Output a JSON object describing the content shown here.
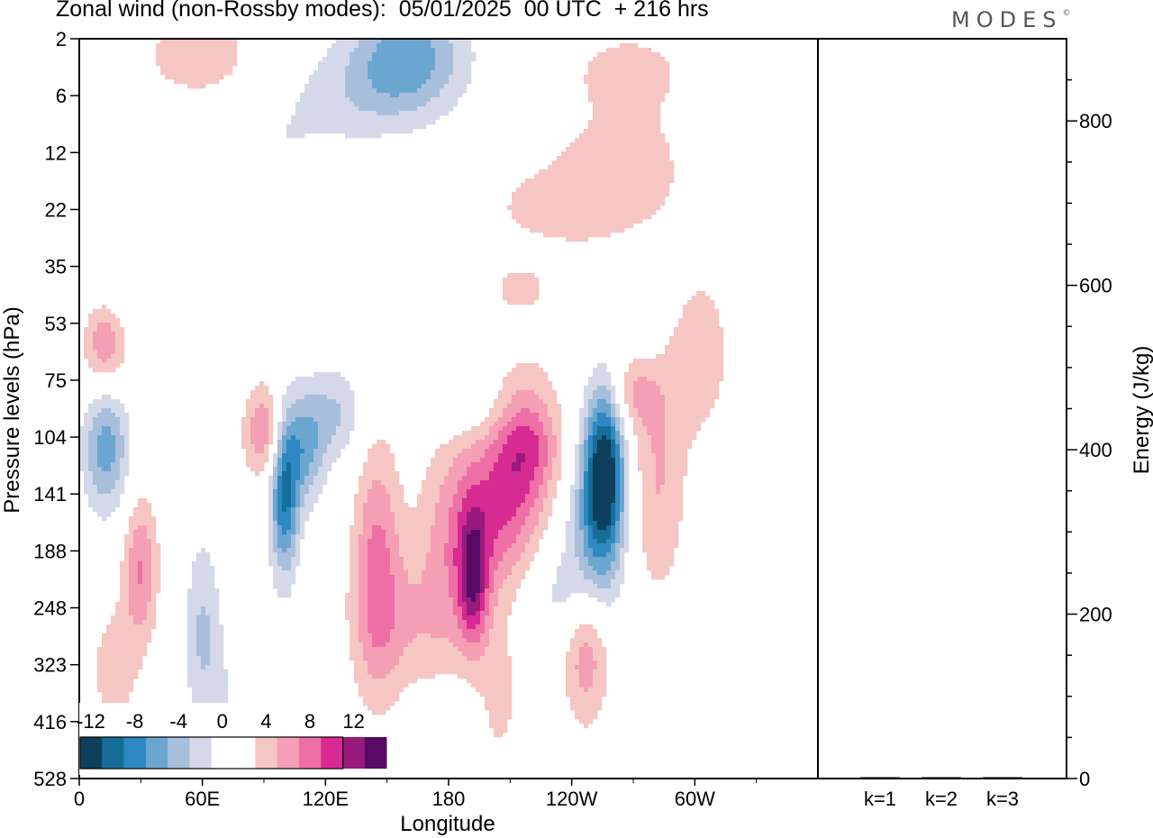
{
  "header": {
    "title": "Zonal wind (non-Rossby modes):  05/01/2025  00 UTC  + 216 hrs",
    "logo": "MODES",
    "logo_mark": "©"
  },
  "colors": {
    "neg": [
      "#0e3f5c",
      "#166d9a",
      "#2e88c1",
      "#6aa6cf",
      "#a7bfdb",
      "#d5d8e8"
    ],
    "zero": "#ffffff",
    "pos": [
      "#f6c6c3",
      "#f49fb4",
      "#ee6fa6",
      "#d72a92",
      "#981a7c",
      "#560a64"
    ]
  },
  "chart_data": [
    {
      "type": "heatmap",
      "title": "Zonal wind (non-Rossby modes):  05/01/2025  00 UTC  + 216 hrs",
      "xlabel": "Longitude",
      "ylabel": "Pressure levels (hPa)",
      "x_ticks": [
        "0",
        "60E",
        "120E",
        "180",
        "120W",
        "60W"
      ],
      "y_ticks": [
        "2",
        "6",
        "12",
        "22",
        "35",
        "53",
        "75",
        "104",
        "141",
        "188",
        "248",
        "323",
        "416",
        "528"
      ],
      "colorbar_labels": [
        "-12",
        "-8",
        "-4",
        "0",
        "4",
        "8",
        "12"
      ],
      "grid": false,
      "blobs": [
        {
          "lon": 13,
          "lev": 7.2,
          "sx": 8,
          "sy": 0.8,
          "v": -7
        },
        {
          "lon": 18,
          "lev": 4.6,
          "sx": 12,
          "sy": 0.7,
          "v": -2.5
        },
        {
          "lon": 100,
          "lev": 8.0,
          "sx": 5,
          "sy": 1.0,
          "v": -10
        },
        {
          "lon": 110,
          "lev": 7.2,
          "sx": 7,
          "sy": 0.7,
          "v": -6
        },
        {
          "lon": 125,
          "lev": 6.6,
          "sx": 10,
          "sy": 0.6,
          "v": -4
        },
        {
          "lon": 60,
          "lev": 10.4,
          "sx": 6,
          "sy": 1.2,
          "v": -4
        },
        {
          "lon": 80,
          "lev": 11.8,
          "sx": 14,
          "sy": 1.3,
          "v": -2
        },
        {
          "lon": 160,
          "lev": 0.3,
          "sx": 20,
          "sy": 0.7,
          "v": -7
        },
        {
          "lon": 135,
          "lev": 1.0,
          "sx": 25,
          "sy": 0.6,
          "v": -2.5
        },
        {
          "lon": 256,
          "lev": 7.6,
          "sx": 7,
          "sy": 1.0,
          "v": -14
        },
        {
          "lon": 250,
          "lev": 8.8,
          "sx": 10,
          "sy": 1.0,
          "v": -5
        },
        {
          "lon": 240,
          "lev": 9.8,
          "sx": 14,
          "sy": 0.6,
          "v": -3
        },
        {
          "lon": 180,
          "lev": 12.6,
          "sx": 15,
          "sy": 0.8,
          "v": -2.5
        },
        {
          "lon": 90,
          "lev": 2.0,
          "sx": 25,
          "sy": 0.7,
          "v": -1.8
        },
        {
          "lon": 195,
          "lev": 6.5,
          "sx": 25,
          "sy": 0.4,
          "v": -2
        },
        {
          "lon": 280,
          "lev": 4.8,
          "sx": 12,
          "sy": 0.8,
          "v": -2
        },
        {
          "lon": 13,
          "lev": 5.3,
          "sx": 8,
          "sy": 0.6,
          "v": 7
        },
        {
          "lon": 30,
          "lev": 9.3,
          "sx": 6,
          "sy": 0.9,
          "v": 6
        },
        {
          "lon": 17,
          "lev": 11.1,
          "sx": 9,
          "sy": 0.9,
          "v": 3
        },
        {
          "lon": 90,
          "lev": 6.9,
          "sx": 7,
          "sy": 0.6,
          "v": 6
        },
        {
          "lon": 58,
          "lev": 0.3,
          "sx": 18,
          "sy": 0.5,
          "v": 4
        },
        {
          "lon": 145,
          "lev": 9.2,
          "sx": 8,
          "sy": 1.6,
          "v": 6
        },
        {
          "lon": 188,
          "lev": 8.5,
          "sx": 14,
          "sy": 1.2,
          "v": 6
        },
        {
          "lon": 192,
          "lev": 9.5,
          "sx": 5,
          "sy": 0.8,
          "v": 8
        },
        {
          "lon": 218,
          "lev": 7.0,
          "sx": 12,
          "sy": 0.8,
          "v": 8
        },
        {
          "lon": 210,
          "lev": 8.3,
          "sx": 12,
          "sy": 0.9,
          "v": 5
        },
        {
          "lon": 165,
          "lev": 10.3,
          "sx": 22,
          "sy": 1.0,
          "v": 3.5
        },
        {
          "lon": 247,
          "lev": 10.6,
          "sx": 8,
          "sy": 1.0,
          "v": 6
        },
        {
          "lon": 270,
          "lev": 6.2,
          "sx": 8,
          "sy": 0.5,
          "v": 4
        },
        {
          "lon": 282,
          "lev": 7.8,
          "sx": 10,
          "sy": 1.5,
          "v": 4
        },
        {
          "lon": 300,
          "lev": 5.5,
          "sx": 12,
          "sy": 1.0,
          "v": 4
        },
        {
          "lon": 240,
          "lev": 3.0,
          "sx": 30,
          "sy": 0.5,
          "v": 3
        },
        {
          "lon": 265,
          "lev": 2.0,
          "sx": 30,
          "sy": 0.8,
          "v": 2.5
        },
        {
          "lon": 190,
          "lev": 13.3,
          "sx": 10,
          "sy": 0.8,
          "v": 3
        },
        {
          "lon": 205,
          "lev": 11.7,
          "sx": 8,
          "sy": 0.9,
          "v": 2.5
        },
        {
          "lon": 215,
          "lev": 4.4,
          "sx": 10,
          "sy": 0.3,
          "v": 3
        },
        {
          "lon": 268,
          "lev": 0.5,
          "sx": 22,
          "sy": 0.5,
          "v": 2.5
        }
      ]
    },
    {
      "type": "bar",
      "categories": [
        "k=1",
        "k=2",
        "k=3"
      ],
      "values": [
        1.5,
        1.5,
        1.5
      ],
      "ylabel": "Energy (J/kg)",
      "y_ticks": [
        "0",
        "200",
        "400",
        "600",
        "800"
      ],
      "ylim": [
        0,
        900
      ]
    }
  ]
}
